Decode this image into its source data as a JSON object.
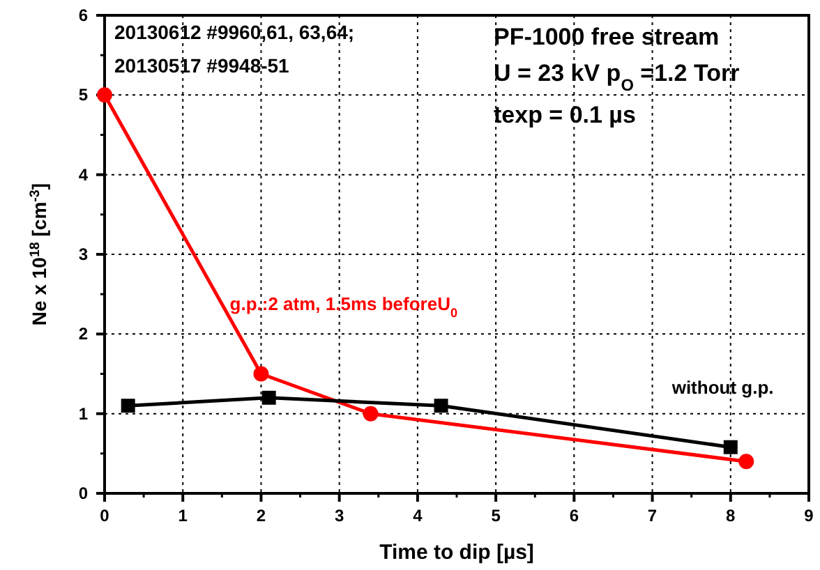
{
  "chart_data": {
    "type": "line",
    "xlabel": "Time to dip [µs]",
    "ylabel": "Ne x 10$^{18}$ [cm$^{-3}$]",
    "xlim": [
      0,
      9
    ],
    "ylim": [
      0,
      6
    ],
    "xticks": [
      0,
      1,
      2,
      3,
      4,
      5,
      6,
      7,
      8,
      9
    ],
    "yticks": [
      0,
      1,
      2,
      3,
      4,
      5,
      6
    ],
    "grid": true,
    "series": [
      {
        "name": "g.p.:2 atm, 1.5ms beforeU$_{0}$",
        "color": "#ff0000",
        "marker": "circle",
        "x": [
          0,
          2,
          3.4,
          8.2
        ],
        "values": [
          5,
          1.5,
          1,
          0.4
        ]
      },
      {
        "name": "without g.p.",
        "color": "#000000",
        "marker": "square",
        "x": [
          0.3,
          2.1,
          4.3,
          8
        ],
        "values": [
          1.1,
          1.2,
          1.1,
          0.58
        ]
      }
    ],
    "annotations": [
      "20130612 #9960,61, 63,64;",
      "20130517 #9948-51",
      "PF-1000 free stream",
      "U = 23 kV p$_{O}$ =1.2 Torr",
      "texp = 0.1 µs"
    ]
  }
}
